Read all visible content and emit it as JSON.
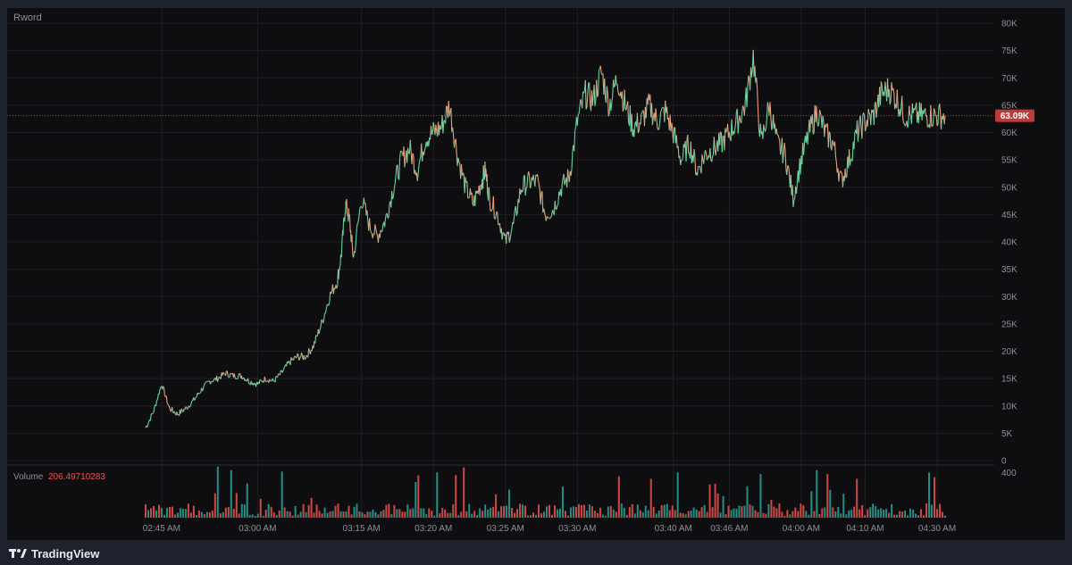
{
  "symbol": "Rword",
  "last_price_label": "63.09K",
  "volume": {
    "label": "Volume",
    "value": "206.49710283",
    "axis_tick": "400"
  },
  "brand": {
    "name": "TradingView"
  },
  "colors": {
    "background": "#0e0e11",
    "frame": "#1e222d",
    "up": "#26a69a",
    "down": "#ef5350",
    "price_badge": "#c0393b",
    "grid": "#1f1f24",
    "text": "#8a8f99"
  },
  "chart_data": {
    "type": "line",
    "description_of_series": "price line (colored by direction) with volume histogram below",
    "y_axis": {
      "range": [
        0,
        80000
      ],
      "ticks": [
        "0",
        "5K",
        "10K",
        "15K",
        "20K",
        "25K",
        "30K",
        "35K",
        "40K",
        "45K",
        "50K",
        "55K",
        "60K",
        "65K",
        "70K",
        "75K",
        "80K"
      ]
    },
    "x_axis": {
      "ticks": [
        "02:45 AM",
        "03:00 AM",
        "03:15 AM",
        "03:20 AM",
        "03:25 AM",
        "03:30 AM",
        "03:40 AM",
        "03:46 AM",
        "04:00 AM",
        "04:10 AM",
        "04:30 AM"
      ],
      "tick_positions": [
        0.02,
        0.14,
        0.27,
        0.36,
        0.45,
        0.54,
        0.66,
        0.73,
        0.82,
        0.9,
        0.99
      ]
    },
    "last_price": 63090,
    "series": [
      {
        "name": "Rword",
        "x": [
          0,
          0.01,
          0.02,
          0.03,
          0.04,
          0.05,
          0.06,
          0.07,
          0.08,
          0.09,
          0.1,
          0.11,
          0.12,
          0.13,
          0.14,
          0.15,
          0.16,
          0.17,
          0.18,
          0.19,
          0.2,
          0.21,
          0.22,
          0.23,
          0.24,
          0.245,
          0.25,
          0.255,
          0.26,
          0.27,
          0.28,
          0.29,
          0.3,
          0.31,
          0.32,
          0.33,
          0.34,
          0.35,
          0.36,
          0.37,
          0.38,
          0.39,
          0.4,
          0.41,
          0.42,
          0.425,
          0.43,
          0.44,
          0.45,
          0.46,
          0.47,
          0.48,
          0.49,
          0.5,
          0.51,
          0.52,
          0.53,
          0.54,
          0.55,
          0.56,
          0.57,
          0.58,
          0.59,
          0.6,
          0.61,
          0.62,
          0.63,
          0.64,
          0.65,
          0.66,
          0.67,
          0.68,
          0.69,
          0.7,
          0.71,
          0.72,
          0.73,
          0.74,
          0.75,
          0.76,
          0.77,
          0.78,
          0.79,
          0.8,
          0.81,
          0.82,
          0.83,
          0.84,
          0.85,
          0.86,
          0.87,
          0.88,
          0.89,
          0.9,
          0.91,
          0.92,
          0.93,
          0.94,
          0.95,
          0.96,
          0.97,
          0.98,
          0.99,
          1.0
        ],
        "values": [
          6000,
          9000,
          14000,
          9500,
          8500,
          9500,
          11000,
          13000,
          14500,
          15000,
          16000,
          15500,
          15500,
          14500,
          14000,
          15000,
          14500,
          16000,
          18000,
          19000,
          19000,
          21000,
          25000,
          30000,
          33000,
          38000,
          47000,
          44000,
          37000,
          48000,
          43000,
          41000,
          44000,
          50000,
          55000,
          57000,
          53000,
          59000,
          60000,
          61000,
          65000,
          56000,
          50000,
          47000,
          51000,
          53000,
          48000,
          45000,
          40000,
          43000,
          50000,
          51000,
          51000,
          45000,
          46000,
          50000,
          52000,
          62000,
          67000,
          66000,
          71000,
          65000,
          70000,
          65000,
          61000,
          62000,
          65000,
          62000,
          64000,
          60000,
          55000,
          58000,
          53000,
          56000,
          57000,
          58000,
          60000,
          62000,
          65000,
          74000,
          58000,
          65000,
          58000,
          56000,
          48000,
          55000,
          60000,
          64000,
          60000,
          58000,
          51000,
          55000,
          60000,
          62000,
          63000,
          67000,
          68000,
          66000,
          63090,
          63090,
          63090,
          63090,
          63090,
          63090
        ]
      }
    ]
  }
}
